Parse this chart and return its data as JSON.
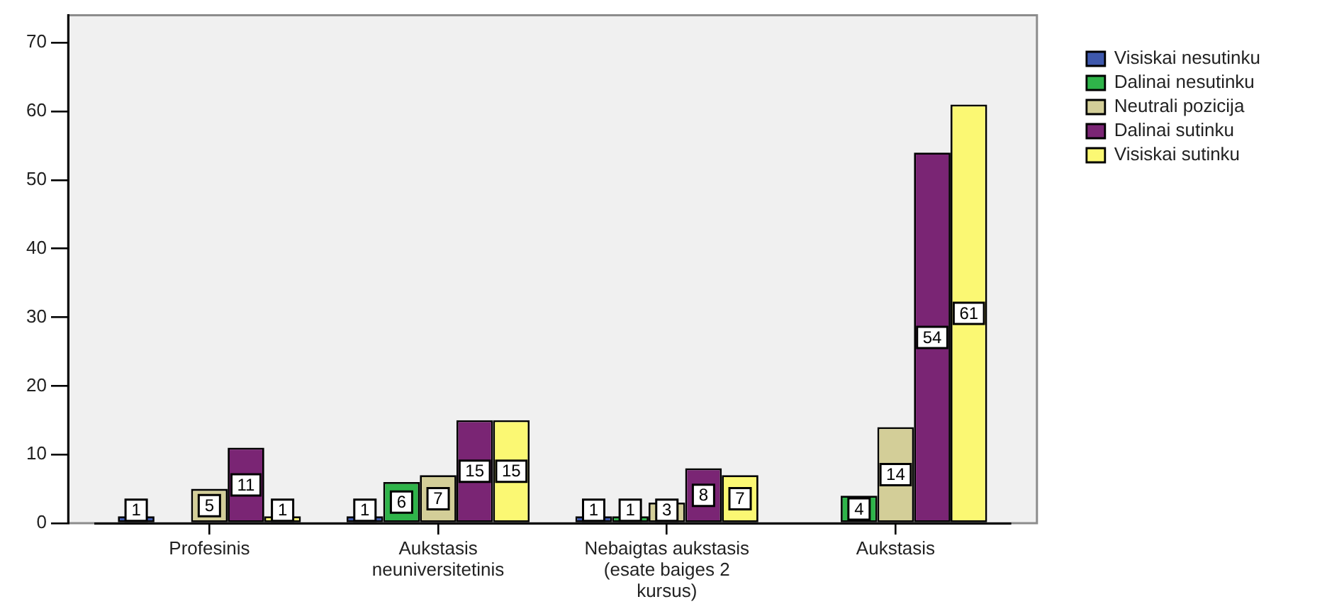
{
  "chart_data": {
    "type": "bar",
    "categories": [
      "Profesinis",
      "Aukstasis neuniversitetinis",
      "Nebaigtas aukstasis (esate baiges 2 kursus)",
      "Aukstasis"
    ],
    "series": [
      {
        "name": "Visiskai nesutinku",
        "color": "#3e58ac",
        "values": [
          1,
          1,
          1,
          null
        ]
      },
      {
        "name": "Dalinai nesutinku",
        "color": "#2fb44a",
        "values": [
          null,
          6,
          1,
          4
        ]
      },
      {
        "name": "Neutrali pozicija",
        "color": "#d3ce98",
        "values": [
          5,
          7,
          3,
          14
        ]
      },
      {
        "name": "Dalinai sutinku",
        "color": "#7a2574",
        "values": [
          11,
          15,
          8,
          54
        ]
      },
      {
        "name": "Visiskai sutinku",
        "color": "#fbf873",
        "values": [
          1,
          15,
          7,
          61
        ]
      }
    ],
    "ylim": [
      0,
      74
    ],
    "yticks": [
      0,
      10,
      20,
      30,
      40,
      50,
      60,
      70
    ],
    "grid": false,
    "legend": "top right",
    "data_labels": true
  }
}
